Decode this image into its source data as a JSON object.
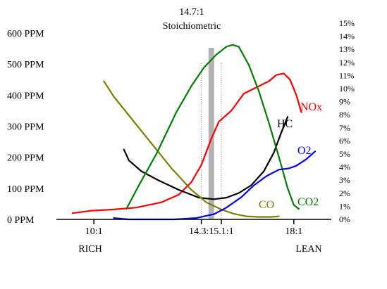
{
  "chart_data": {
    "type": "line",
    "title": "14.7:1",
    "subtitle": "Stoichiometric",
    "x_categories": [
      {
        "label": "10:1",
        "x": 10.0
      },
      {
        "label": "14.3:1",
        "x": 14.3
      },
      {
        "label": "15.1:1",
        "x": 15.1
      },
      {
        "label": "18:1",
        "x": 18.0
      }
    ],
    "end_labels": {
      "rich": "RICH",
      "lean": "LEAN"
    },
    "stoich_marker_x": 14.7,
    "left_axis": {
      "unit": "PPM",
      "ylim": [
        0,
        600
      ],
      "ticks": [
        0,
        100,
        200,
        300,
        400,
        500,
        600
      ],
      "tick_labels": [
        "0 PPM",
        "100 PPM",
        "200 PPM",
        "300 PPM",
        "400 PPM",
        "500 PPM",
        "600 PPM"
      ]
    },
    "right_axis": {
      "unit": "%",
      "ylim": [
        0,
        15
      ],
      "ticks": [
        0,
        1,
        2,
        3,
        4,
        5,
        6,
        7,
        8,
        9,
        10,
        11,
        12,
        13,
        14,
        15
      ],
      "tick_labels": [
        "0%",
        "1%",
        "2%",
        "3%",
        "4%",
        "5%",
        "6%",
        "7%",
        "8%",
        "9%",
        "10%",
        "11%",
        "12%",
        "13%",
        "14%",
        "15%"
      ]
    },
    "series": [
      {
        "name": "NOx",
        "color": "#ff0000",
        "axis": "left",
        "x": [
          9.15,
          9.9,
          10.8,
          11.7,
          12.7,
          13.4,
          13.9,
          14.3,
          14.7,
          15.0,
          15.5,
          16.0,
          16.5,
          17.0,
          17.3,
          17.6,
          17.85,
          18.1,
          18.3
        ],
        "y": [
          20,
          28,
          32,
          38,
          55,
          80,
          120,
          175,
          260,
          315,
          350,
          405,
          425,
          445,
          465,
          470,
          450,
          400,
          345
        ]
      },
      {
        "name": "HC",
        "color": "#000000",
        "axis": "left",
        "x": [
          11.2,
          11.4,
          11.9,
          12.6,
          13.4,
          14.2,
          14.8,
          15.3,
          15.8,
          16.3,
          16.8,
          17.2,
          17.5,
          17.75
        ],
        "y": [
          225,
          190,
          155,
          125,
          95,
          70,
          65,
          70,
          85,
          110,
          155,
          215,
          280,
          330
        ]
      },
      {
        "name": "CO",
        "color": "#808000",
        "axis": "left",
        "x": [
          10.4,
          10.8,
          11.5,
          12.3,
          13.1,
          13.9,
          14.5,
          15.1,
          15.6,
          16.1,
          16.6,
          17.1,
          17.4
        ],
        "y": [
          445,
          395,
          325,
          245,
          165,
          95,
          55,
          32,
          18,
          10,
          8,
          8,
          10
        ]
      },
      {
        "name": "CO2",
        "color": "#008000",
        "axis": "right",
        "x": [
          11.3,
          11.8,
          12.5,
          13.3,
          13.9,
          14.4,
          14.9,
          15.3,
          15.55,
          15.8,
          16.2,
          16.6,
          17.0,
          17.4,
          17.75,
          18.0,
          18.2
        ],
        "y": [
          0.8,
          2.6,
          5.0,
          8.2,
          10.2,
          11.6,
          12.6,
          13.2,
          13.35,
          13.2,
          11.8,
          9.8,
          7.4,
          4.8,
          2.4,
          1.1,
          0.8
        ]
      },
      {
        "name": "O2",
        "color": "#0000ff",
        "axis": "right",
        "x": [
          10.8,
          11.1,
          11.4,
          12.2,
          13.2,
          14.1,
          14.8,
          15.3,
          15.9,
          16.4,
          16.9,
          17.4,
          17.8,
          18.1,
          18.5,
          18.85
        ],
        "y": [
          0.1,
          0.05,
          0.0,
          0.0,
          0.0,
          0.1,
          0.4,
          0.9,
          1.7,
          2.6,
          3.3,
          3.8,
          3.9,
          4.1,
          4.6,
          5.2
        ]
      }
    ],
    "series_labels": [
      {
        "name": "NOx",
        "text": "NOx"
      },
      {
        "name": "HC",
        "text": "HC"
      },
      {
        "name": "CO",
        "text": "CO"
      },
      {
        "name": "CO2",
        "text": "CO2"
      },
      {
        "name": "O2",
        "text": "O2"
      }
    ],
    "grid": false,
    "legend": "inline-labels"
  }
}
